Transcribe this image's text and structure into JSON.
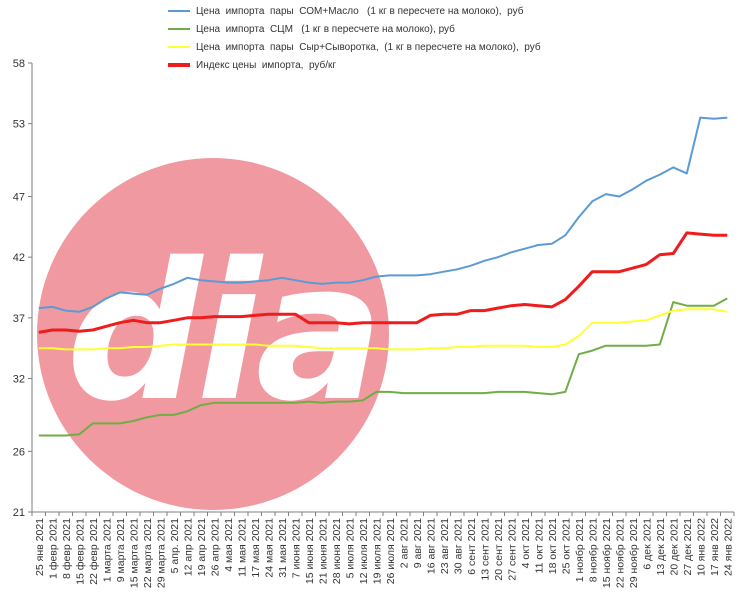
{
  "chart_data": {
    "type": "line",
    "title": "",
    "xlabel": "",
    "ylabel": "",
    "ylim": [
      21,
      58
    ],
    "yticks": [
      21,
      26,
      32,
      37,
      42,
      47,
      53,
      58
    ],
    "grid": false,
    "legend_position": "top",
    "logo_text": "dia",
    "categories": [
      "25 янв 2021",
      "1 февр 2021",
      "8 февр 2021",
      "15 февр 2021",
      "22 февр 2021",
      "1 марта 2021",
      "9 марта 2021",
      "15 марта 2021",
      "22 марта 2021",
      "29 марта 2021",
      "5 апр. 2021",
      "12 апр 2021",
      "19 апр 2021",
      "26 апр 2021",
      "4 мая 2021",
      "11 мая 2021",
      "17 мая 2021",
      "24 мая 2021",
      "31 мая 2021",
      "7 июня 2021",
      "15 июня 2021",
      "21 июня 2021",
      "28 июня 2021",
      "5 июля 2021",
      "12 июля 2021",
      "19 июля 2021",
      "26 июля 2021",
      "2 авг 2021",
      "9 авг 2021",
      "16 авг 2021",
      "23 авг 2021",
      "30 авг 2021",
      "6 сент 2021",
      "13 сент 2021",
      "20 сент 2021",
      "27 сент 2021",
      "4 окт 2021",
      "11 окт 2021",
      "18 окт 2021",
      "25 окт 2021",
      "1 ноябр 2021",
      "8 ноябр 2021",
      "15 ноябр 2021",
      "22 ноябр 2021",
      "29 ноябр 2021",
      "6 дек 2021",
      "13 дек 2021",
      "20 дек 2021",
      "27 дек 2021",
      "10 янв 2022",
      "17 янв 2022",
      "24 янв 2022"
    ],
    "series": [
      {
        "name": "Цена  импорта  пары  СОМ+Масло   (1 кг в пересчете на молоко),  руб",
        "color": "#5b9bd5",
        "values": [
          37.8,
          37.9,
          37.6,
          37.5,
          37.9,
          38.6,
          39.1,
          39.0,
          38.9,
          39.4,
          39.8,
          40.3,
          40.1,
          40.0,
          39.9,
          39.9,
          40.0,
          40.1,
          40.3,
          40.1,
          39.9,
          39.8,
          39.9,
          39.9,
          40.1,
          40.4,
          40.5,
          40.5,
          40.5,
          40.6,
          40.8,
          41.0,
          41.3,
          41.7,
          42.0,
          42.4,
          42.7,
          43.0,
          43.1,
          43.8,
          45.3,
          46.6,
          47.2,
          47.0,
          47.6,
          48.3,
          48.8,
          49.4,
          48.9,
          53.5,
          53.4,
          53.5
        ]
      },
      {
        "name": "Цена  импорта  СЦМ   (1 кг в пересчете на молоко), руб",
        "color": "#70ad47",
        "values": [
          27.3,
          27.3,
          27.3,
          27.4,
          28.3,
          28.3,
          28.3,
          28.5,
          28.8,
          29.0,
          29.0,
          29.3,
          29.8,
          30.0,
          30.0,
          30.0,
          30.0,
          30.0,
          30.0,
          30.0,
          30.1,
          30.0,
          30.1,
          30.1,
          30.2,
          30.9,
          30.9,
          30.8,
          30.8,
          30.8,
          30.8,
          30.8,
          30.8,
          30.8,
          30.9,
          30.9,
          30.9,
          30.8,
          30.7,
          30.9,
          34.0,
          34.3,
          34.7,
          34.7,
          34.7,
          34.7,
          34.8,
          38.3,
          38.0,
          38.0,
          38.0,
          38.6
        ]
      },
      {
        "name": "Цена  импорта  пары  Сыр+Сыворотка,  (1 кг в пересчете на молоко),  руб",
        "color": "#ffff33",
        "values": [
          34.5,
          34.5,
          34.4,
          34.4,
          34.4,
          34.5,
          34.5,
          34.6,
          34.6,
          34.7,
          34.8,
          34.8,
          34.8,
          34.8,
          34.8,
          34.8,
          34.8,
          34.7,
          34.7,
          34.7,
          34.6,
          34.5,
          34.5,
          34.5,
          34.5,
          34.5,
          34.4,
          34.4,
          34.4,
          34.5,
          34.5,
          34.6,
          34.6,
          34.7,
          34.7,
          34.7,
          34.7,
          34.6,
          34.6,
          34.8,
          35.5,
          36.6,
          36.6,
          36.6,
          36.7,
          36.8,
          37.2,
          37.6,
          37.7,
          37.7,
          37.7,
          37.5
        ]
      },
      {
        "name": "Индекс цены  импорта,  руб/кг",
        "color": "#ee1c1c",
        "values": [
          35.8,
          36.0,
          36.0,
          35.9,
          36.0,
          36.3,
          36.6,
          36.8,
          36.6,
          36.6,
          36.8,
          37.0,
          37.0,
          37.1,
          37.1,
          37.1,
          37.2,
          37.3,
          37.3,
          37.3,
          36.6,
          36.6,
          36.6,
          36.5,
          36.6,
          36.6,
          36.6,
          36.6,
          36.6,
          37.2,
          37.3,
          37.3,
          37.6,
          37.6,
          37.8,
          38.0,
          38.1,
          38.0,
          37.9,
          38.5,
          39.6,
          40.8,
          40.8,
          40.8,
          41.1,
          41.4,
          42.2,
          42.3,
          44.0,
          43.9,
          43.8,
          43.8
        ]
      }
    ]
  }
}
